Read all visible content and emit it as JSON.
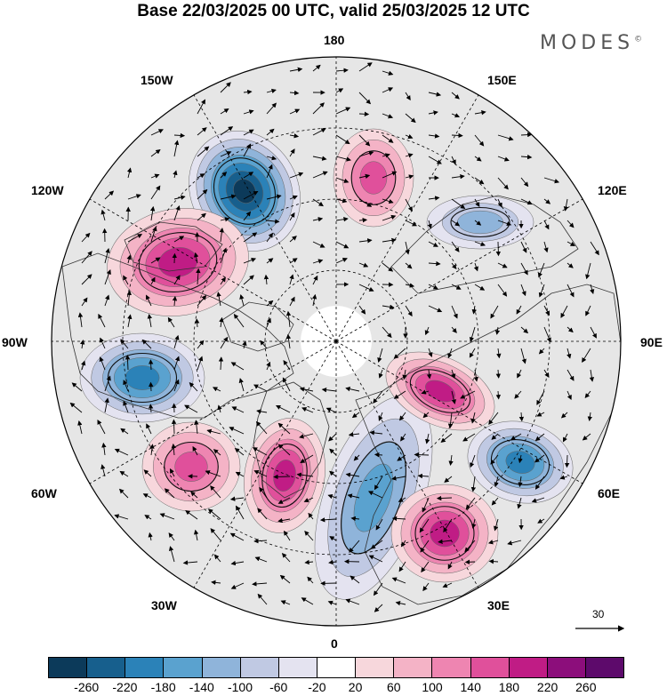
{
  "header": {
    "title": "Base 22/03/2025 00 UTC, valid 25/03/2025 12 UTC",
    "brand": "MODES",
    "brand_mark": "©"
  },
  "map": {
    "projection": "north-polar-stereographic",
    "longitude_labels": {
      "top": "180",
      "bottom": "0",
      "left": "90W",
      "right": "90E",
      "upper_left_1": "150W",
      "upper_left_2": "120W",
      "lower_left_1": "60W",
      "lower_left_2": "30W",
      "upper_right_1": "150E",
      "upper_right_2": "120E",
      "lower_right_1": "60E",
      "lower_right_2": "30E"
    },
    "anomalies": [
      {
        "id": "negative-pacific-low",
        "sign": "negative",
        "peak": -260
      },
      {
        "id": "positive-alaska-high",
        "sign": "positive",
        "peak": 200
      },
      {
        "id": "negative-canada-low",
        "sign": "negative",
        "peak": -200
      },
      {
        "id": "positive-atlantic-west",
        "sign": "positive",
        "peak": 140
      },
      {
        "id": "positive-greenland",
        "sign": "positive",
        "peak": 180
      },
      {
        "id": "negative-europe-trough",
        "sign": "negative",
        "peak": -140
      },
      {
        "id": "positive-eastern-europe",
        "sign": "positive",
        "peak": 180
      },
      {
        "id": "positive-siberia",
        "sign": "positive",
        "peak": 200
      },
      {
        "id": "negative-central-asia",
        "sign": "negative",
        "peak": -180
      },
      {
        "id": "negative-east-siberia",
        "sign": "negative",
        "peak": -100
      },
      {
        "id": "positive-bering",
        "sign": "positive",
        "peak": 140
      }
    ]
  },
  "reference_vector": {
    "label": "30"
  },
  "colorbar": {
    "colors": [
      "#0c3a5a",
      "#175f8d",
      "#2b82b8",
      "#5aa2cf",
      "#8fb4da",
      "#c0c9e3",
      "#e4e3f0",
      "#ffffff",
      "#f7d7dc",
      "#f4b3c6",
      "#ee85b1",
      "#e0509b",
      "#c01c85",
      "#8c0e7b",
      "#5d0a6b"
    ],
    "tick_labels": [
      "-260",
      "-220",
      "-180",
      "-140",
      "-100",
      "-60",
      "-20",
      "20",
      "60",
      "100",
      "140",
      "180",
      "220",
      "260"
    ]
  }
}
